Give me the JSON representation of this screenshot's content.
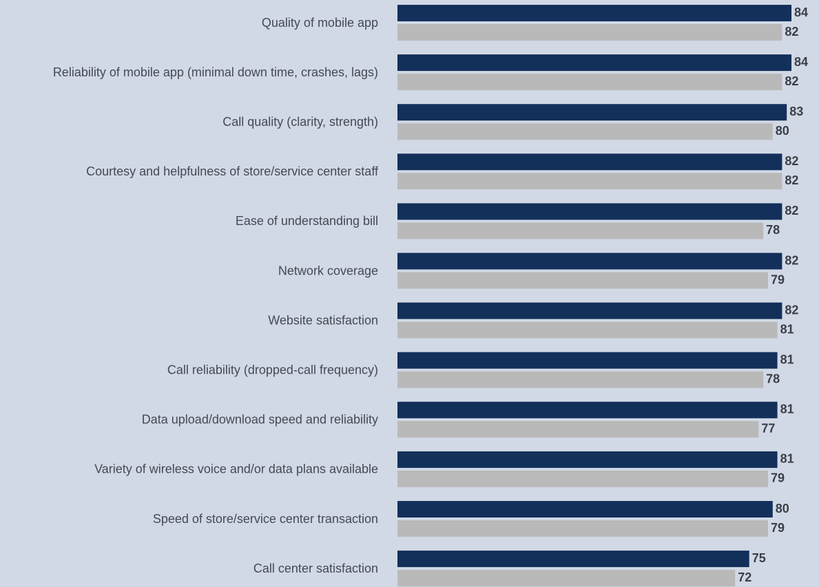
{
  "chart_data": {
    "type": "bar",
    "orientation": "horizontal",
    "categories": [
      "Quality of mobile app",
      "Reliability of mobile app (minimal down time, crashes, lags)",
      "Call quality (clarity, strength)",
      "Courtesy and helpfulness of store/service center staff",
      "Ease of understanding bill",
      "Network coverage",
      "Website satisfaction",
      "Call reliability (dropped-call frequency)",
      "Data upload/download speed and reliability",
      "Variety of wireless voice and/or data plans available",
      "Speed of store/service center transaction",
      "Call center satisfaction"
    ],
    "series": [
      {
        "values": [
          84,
          84,
          83,
          82,
          82,
          82,
          82,
          81,
          81,
          81,
          80,
          75
        ],
        "color": "#13305a"
      },
      {
        "values": [
          82,
          82,
          80,
          82,
          78,
          79,
          81,
          78,
          77,
          79,
          79,
          72
        ],
        "color": "#b9b9b9"
      }
    ],
    "title": "",
    "xlabel": "",
    "ylabel": "",
    "grid": false,
    "legend": "none"
  }
}
